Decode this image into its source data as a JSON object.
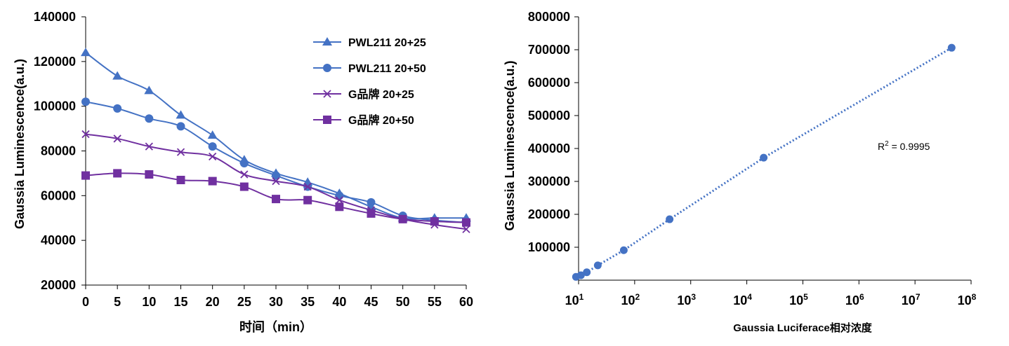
{
  "chart_data": [
    {
      "type": "line",
      "xlabel": "时间（min）",
      "ylabel": "Gaussia Luminescence(a.u.)",
      "x": [
        0,
        5,
        10,
        15,
        20,
        25,
        30,
        35,
        40,
        45,
        50,
        55,
        60
      ],
      "xlim": [
        0,
        60
      ],
      "ylim": [
        20000,
        140000
      ],
      "yticks": [
        "20000",
        "40000",
        "60000",
        "80000",
        "100000",
        "120000",
        "140000"
      ],
      "xticks": [
        "0",
        "5",
        "10",
        "15",
        "20",
        "25",
        "30",
        "35",
        "40",
        "45",
        "50",
        "55",
        "60"
      ],
      "grid": false,
      "legend_position": "top-right",
      "series": [
        {
          "name": "PWL211 20+25",
          "marker": "triangle",
          "color": "#4472C4",
          "values": [
            124000,
            113500,
            107000,
            96000,
            87000,
            76000,
            70000,
            66000,
            61000,
            55000,
            50000,
            50000,
            50000
          ]
        },
        {
          "name": "PWL211 20+50",
          "marker": "circle",
          "color": "#4472C4",
          "values": [
            102000,
            99000,
            94500,
            91000,
            82000,
            74500,
            69000,
            64000,
            60000,
            57000,
            51000,
            49000,
            48000
          ]
        },
        {
          "name": "G品牌 20+25",
          "marker": "x",
          "color": "#7030A0",
          "values": [
            87500,
            85500,
            82000,
            79500,
            77500,
            69500,
            66500,
            64000,
            58000,
            53500,
            49500,
            47000,
            45000
          ]
        },
        {
          "name": "G品牌 20+50",
          "marker": "square",
          "color": "#7030A0",
          "values": [
            69000,
            70000,
            69500,
            67000,
            66500,
            64000,
            58500,
            58000,
            55000,
            52000,
            49500,
            48500,
            48000
          ]
        }
      ]
    },
    {
      "type": "scatter",
      "xlabel": "Gaussia Luciferace相对浓度",
      "ylabel": "Gaussia Luminescence(a.u.)",
      "x_scale": "log",
      "xlim": [
        10,
        100000000
      ],
      "ylim": [
        0,
        800000
      ],
      "yticks": [
        "100000",
        "200000",
        "300000",
        "400000",
        "500000",
        "600000",
        "700000",
        "800000"
      ],
      "xticks": [
        {
          "base": "10",
          "exp": "1"
        },
        {
          "base": "10",
          "exp": "2"
        },
        {
          "base": "10",
          "exp": "3"
        },
        {
          "base": "10",
          "exp": "4"
        },
        {
          "base": "10",
          "exp": "5"
        },
        {
          "base": "10",
          "exp": "6"
        },
        {
          "base": "10",
          "exp": "7"
        },
        {
          "base": "10",
          "exp": "8"
        }
      ],
      "grid": false,
      "annotation": {
        "text": "R",
        "sup": "2",
        "rest": " = 0.9995"
      },
      "trendline": {
        "style": "dotted",
        "color": "#4472C4"
      },
      "series": [
        {
          "color": "#4472C4",
          "x": [
            9,
            11,
            14,
            22,
            64,
            420,
            20000,
            45000000
          ],
          "y": [
            10000,
            15000,
            24000,
            45000,
            91000,
            185000,
            372000,
            706000
          ]
        }
      ]
    }
  ]
}
